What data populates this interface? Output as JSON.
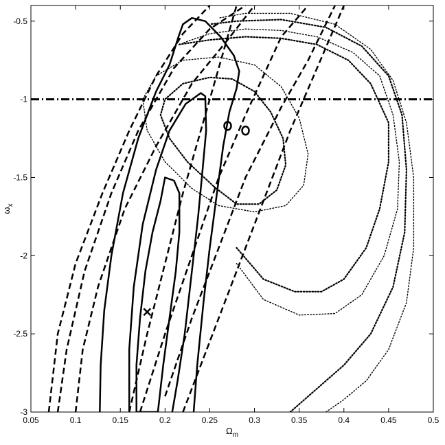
{
  "chart_data": {
    "type": "line",
    "title": "",
    "xlabel": "Ω",
    "xlabel_sub": "m",
    "ylabel": "ω",
    "ylabel_sub": "x",
    "xlim": [
      0.05,
      0.5
    ],
    "ylim": [
      -3,
      -0.4
    ],
    "x_ticks": [
      0.05,
      0.1,
      0.15,
      0.2,
      0.25,
      0.3,
      0.35,
      0.4,
      0.45,
      0.5
    ],
    "x_tick_labels": [
      "0.05",
      "0.1",
      "0.15",
      "0.2",
      "0.25",
      "0.3",
      "0.35",
      "0.4",
      "0.45",
      "0.5"
    ],
    "y_ticks": [
      -3,
      -2.5,
      -2,
      -1.5,
      -1,
      -0.5
    ],
    "y_tick_labels": [
      "-3",
      "-2.5",
      "-2",
      "-1.5",
      "-1",
      "-0.5"
    ],
    "grid": false,
    "legend": "none",
    "series": [
      {
        "style": "dashdot",
        "width": 3,
        "points": [
          [
            0.05,
            -1
          ],
          [
            0.5,
            -1
          ]
        ]
      },
      {
        "style": "solid",
        "width": 2.5,
        "closed": true,
        "points": [
          [
            0.2,
            -1.5
          ],
          [
            0.21,
            -1.52
          ],
          [
            0.216,
            -1.6
          ],
          [
            0.216,
            -1.85
          ],
          [
            0.212,
            -2.1
          ],
          [
            0.205,
            -2.4
          ],
          [
            0.198,
            -2.7
          ],
          [
            0.192,
            -3
          ],
          [
            0.168,
            -3
          ],
          [
            0.168,
            -2.7
          ],
          [
            0.172,
            -2.4
          ],
          [
            0.178,
            -2.1
          ],
          [
            0.186,
            -1.85
          ],
          [
            0.195,
            -1.65
          ],
          [
            0.2,
            -1.5
          ]
        ]
      },
      {
        "style": "solid",
        "width": 2.5,
        "closed": false,
        "points": [
          [
            0.16,
            -3
          ],
          [
            0.16,
            -2.6
          ],
          [
            0.165,
            -2.2
          ],
          [
            0.175,
            -1.8
          ],
          [
            0.19,
            -1.45
          ],
          [
            0.205,
            -1.2
          ],
          [
            0.223,
            -1.03
          ],
          [
            0.24,
            -0.96
          ],
          [
            0.245,
            -0.98
          ],
          [
            0.246,
            -1.2
          ],
          [
            0.242,
            -1.45
          ],
          [
            0.237,
            -1.75
          ],
          [
            0.23,
            -2.1
          ],
          [
            0.222,
            -2.5
          ],
          [
            0.214,
            -2.8
          ],
          [
            0.208,
            -3
          ]
        ]
      },
      {
        "style": "solid",
        "width": 2.5,
        "closed": false,
        "points": [
          [
            0.127,
            -3
          ],
          [
            0.128,
            -2.7
          ],
          [
            0.132,
            -2.35
          ],
          [
            0.14,
            -2.0
          ],
          [
            0.153,
            -1.6
          ],
          [
            0.17,
            -1.25
          ],
          [
            0.19,
            -0.95
          ],
          [
            0.205,
            -0.78
          ],
          [
            0.215,
            -0.6
          ],
          [
            0.22,
            -0.52
          ],
          [
            0.23,
            -0.48
          ],
          [
            0.245,
            -0.5
          ],
          [
            0.262,
            -0.6
          ],
          [
            0.277,
            -0.72
          ],
          [
            0.283,
            -0.82
          ],
          [
            0.28,
            -0.93
          ],
          [
            0.272,
            -1.08
          ],
          [
            0.265,
            -1.3
          ],
          [
            0.258,
            -1.6
          ],
          [
            0.25,
            -1.95
          ],
          [
            0.243,
            -2.3
          ],
          [
            0.236,
            -2.7
          ],
          [
            0.232,
            -3
          ]
        ]
      },
      {
        "style": "dashed",
        "width": 2.5,
        "points": [
          [
            0.16,
            -3
          ],
          [
            0.18,
            -2.5
          ],
          [
            0.2,
            -2.05
          ],
          [
            0.22,
            -1.6
          ],
          [
            0.24,
            -1.2
          ],
          [
            0.26,
            -0.8
          ],
          [
            0.28,
            -0.4
          ]
        ]
      },
      {
        "style": "dashed",
        "width": 2.5,
        "points": [
          [
            0.172,
            -3
          ],
          [
            0.2,
            -2.5
          ],
          [
            0.23,
            -2.0
          ],
          [
            0.26,
            -1.5
          ],
          [
            0.29,
            -1.1
          ],
          [
            0.33,
            -0.6
          ],
          [
            0.36,
            -0.4
          ]
        ]
      },
      {
        "style": "dashed",
        "width": 2.5,
        "points": [
          [
            0.07,
            -3
          ],
          [
            0.08,
            -2.5
          ],
          [
            0.1,
            -2.05
          ],
          [
            0.13,
            -1.6
          ],
          [
            0.16,
            -1.2
          ],
          [
            0.19,
            -0.85
          ],
          [
            0.22,
            -0.58
          ],
          [
            0.25,
            -0.4
          ]
        ]
      },
      {
        "style": "dashed",
        "width": 2.5,
        "points": [
          [
            0.08,
            -3
          ],
          [
            0.09,
            -2.6
          ],
          [
            0.11,
            -2.1
          ],
          [
            0.14,
            -1.6
          ],
          [
            0.17,
            -1.2
          ],
          [
            0.21,
            -0.8
          ],
          [
            0.25,
            -0.55
          ],
          [
            0.29,
            -0.4
          ]
        ]
      },
      {
        "style": "dashed",
        "width": 2.5,
        "points": [
          [
            0.1,
            -3
          ],
          [
            0.108,
            -2.6
          ],
          [
            0.125,
            -2.2
          ],
          [
            0.155,
            -1.7
          ],
          [
            0.19,
            -1.3
          ],
          [
            0.23,
            -0.9
          ],
          [
            0.27,
            -0.62
          ],
          [
            0.3,
            -0.4
          ]
        ]
      },
      {
        "style": "dashed",
        "width": 2.5,
        "points": [
          [
            0.2,
            -2.9
          ],
          [
            0.23,
            -2.4
          ],
          [
            0.26,
            -1.95
          ],
          [
            0.29,
            -1.5
          ],
          [
            0.33,
            -1.05
          ],
          [
            0.36,
            -0.75
          ],
          [
            0.39,
            -0.4
          ]
        ]
      },
      {
        "style": "dashed",
        "width": 2.5,
        "points": [
          [
            0.22,
            -3
          ],
          [
            0.25,
            -2.55
          ],
          [
            0.28,
            -2.1
          ],
          [
            0.31,
            -1.65
          ],
          [
            0.34,
            -1.2
          ],
          [
            0.37,
            -0.8
          ],
          [
            0.4,
            -0.4
          ]
        ]
      },
      {
        "style": "dotted",
        "width": 2.2,
        "closed": true,
        "points": [
          [
            0.255,
            -1.56
          ],
          [
            0.28,
            -1.67
          ],
          [
            0.305,
            -1.67
          ],
          [
            0.325,
            -1.58
          ],
          [
            0.335,
            -1.42
          ],
          [
            0.332,
            -1.25
          ],
          [
            0.318,
            -1.08
          ],
          [
            0.3,
            -0.95
          ],
          [
            0.275,
            -0.87
          ],
          [
            0.25,
            -0.86
          ],
          [
            0.22,
            -0.9
          ],
          [
            0.2,
            -1.0
          ],
          [
            0.195,
            -1.1
          ],
          [
            0.205,
            -1.25
          ],
          [
            0.225,
            -1.4
          ],
          [
            0.255,
            -1.56
          ]
        ]
      },
      {
        "style": "dotted",
        "width": 1.4,
        "closed": true,
        "points": [
          [
            0.26,
            -1.68
          ],
          [
            0.3,
            -1.72
          ],
          [
            0.335,
            -1.68
          ],
          [
            0.355,
            -1.55
          ],
          [
            0.36,
            -1.35
          ],
          [
            0.35,
            -1.12
          ],
          [
            0.33,
            -0.92
          ],
          [
            0.3,
            -0.78
          ],
          [
            0.26,
            -0.73
          ],
          [
            0.22,
            -0.75
          ],
          [
            0.19,
            -0.85
          ],
          [
            0.175,
            -1.0
          ],
          [
            0.18,
            -1.2
          ],
          [
            0.2,
            -1.4
          ],
          [
            0.23,
            -1.57
          ],
          [
            0.26,
            -1.68
          ]
        ]
      },
      {
        "style": "dotted",
        "width": 2.2,
        "closed": false,
        "points": [
          [
            0.28,
            -1.95
          ],
          [
            0.31,
            -2.15
          ],
          [
            0.345,
            -2.23
          ],
          [
            0.375,
            -2.23
          ],
          [
            0.4,
            -2.15
          ],
          [
            0.425,
            -1.95
          ],
          [
            0.44,
            -1.7
          ],
          [
            0.45,
            -1.4
          ],
          [
            0.45,
            -1.15
          ],
          [
            0.43,
            -0.9
          ],
          [
            0.405,
            -0.75
          ],
          [
            0.37,
            -0.65
          ],
          [
            0.33,
            -0.61
          ],
          [
            0.29,
            -0.6
          ],
          [
            0.25,
            -0.62
          ],
          [
            0.215,
            -0.65
          ]
        ]
      },
      {
        "style": "dotted",
        "width": 1.4,
        "closed": false,
        "points": [
          [
            0.28,
            -2.05
          ],
          [
            0.31,
            -2.28
          ],
          [
            0.35,
            -2.38
          ],
          [
            0.39,
            -2.37
          ],
          [
            0.42,
            -2.25
          ],
          [
            0.445,
            -2.0
          ],
          [
            0.46,
            -1.7
          ],
          [
            0.462,
            -1.4
          ],
          [
            0.455,
            -1.1
          ],
          [
            0.44,
            -0.85
          ],
          [
            0.41,
            -0.7
          ],
          [
            0.37,
            -0.6
          ],
          [
            0.33,
            -0.56
          ],
          [
            0.29,
            -0.55
          ],
          [
            0.25,
            -0.58
          ],
          [
            0.22,
            -0.64
          ]
        ]
      },
      {
        "style": "dotted",
        "width": 2.2,
        "closed": false,
        "points": [
          [
            0.34,
            -3
          ],
          [
            0.37,
            -2.85
          ],
          [
            0.4,
            -2.7
          ],
          [
            0.43,
            -2.5
          ],
          [
            0.455,
            -2.2
          ],
          [
            0.468,
            -1.85
          ],
          [
            0.47,
            -1.45
          ],
          [
            0.465,
            -1.1
          ],
          [
            0.45,
            -0.85
          ],
          [
            0.42,
            -0.66
          ],
          [
            0.38,
            -0.54
          ],
          [
            0.33,
            -0.49
          ],
          [
            0.28,
            -0.5
          ],
          [
            0.25,
            -0.52
          ]
        ]
      },
      {
        "style": "dotted",
        "width": 1.4,
        "closed": false,
        "points": [
          [
            0.38,
            -3
          ],
          [
            0.4,
            -2.92
          ],
          [
            0.425,
            -2.8
          ],
          [
            0.45,
            -2.6
          ],
          [
            0.47,
            -2.3
          ],
          [
            0.478,
            -1.95
          ],
          [
            0.478,
            -1.5
          ],
          [
            0.47,
            -1.15
          ],
          [
            0.455,
            -0.88
          ],
          [
            0.43,
            -0.68
          ],
          [
            0.39,
            -0.52
          ],
          [
            0.34,
            -0.45
          ],
          [
            0.29,
            -0.45
          ],
          [
            0.26,
            -0.48
          ]
        ]
      }
    ],
    "markers": [
      {
        "shape": "circle",
        "x": 0.27,
        "y": -1.17
      },
      {
        "shape": "circle",
        "x": 0.29,
        "y": -1.2
      },
      {
        "shape": "cross",
        "x": 0.18,
        "y": -2.36
      }
    ]
  }
}
